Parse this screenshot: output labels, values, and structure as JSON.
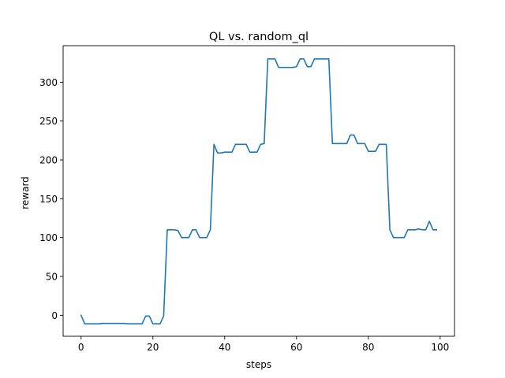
{
  "chart_data": {
    "type": "line",
    "title": "QL vs. random_ql",
    "xlabel": "steps",
    "ylabel": "reward",
    "xlim": [
      -5,
      104
    ],
    "ylim": [
      -27,
      347
    ],
    "xticks": [
      0,
      20,
      40,
      60,
      80,
      100
    ],
    "yticks": [
      0,
      50,
      100,
      150,
      200,
      250,
      300
    ],
    "grid": false,
    "line_color": "#1f77b4",
    "series": [
      {
        "x": [
          0,
          1,
          2,
          3,
          4,
          5,
          6,
          7,
          8,
          9,
          10,
          11,
          12,
          13,
          14,
          15,
          16,
          17,
          18,
          19,
          20,
          21,
          22,
          23,
          24,
          25,
          26,
          27,
          28,
          29,
          30,
          31,
          32,
          33,
          34,
          35,
          36,
          37,
          38,
          39,
          40,
          41,
          42,
          43,
          44,
          45,
          46,
          47,
          48,
          49,
          50,
          51,
          52,
          53,
          54,
          55,
          56,
          57,
          58,
          59,
          60,
          61,
          62,
          63,
          64,
          65,
          66,
          67,
          68,
          69,
          70,
          71,
          72,
          73,
          74,
          75,
          76,
          77,
          78,
          79,
          80,
          81,
          82,
          83,
          84,
          85,
          86,
          87,
          88,
          89,
          90,
          91,
          92,
          93,
          94,
          95,
          96,
          97,
          98,
          99
        ],
        "values": [
          0,
          -11,
          -11,
          -11,
          -11,
          -11,
          -10.5,
          -10.5,
          -10.5,
          -10.5,
          -10.5,
          -10.5,
          -10.5,
          -11,
          -11,
          -11,
          -11,
          -11,
          -1,
          -1,
          -11,
          -11,
          -11,
          -1,
          110,
          110,
          110,
          109,
          100,
          100,
          100,
          110,
          110,
          100,
          100,
          100,
          110,
          220,
          209,
          209,
          210,
          210,
          210,
          220,
          220,
          220,
          220,
          210,
          210,
          210,
          220,
          221,
          330,
          330,
          330,
          319,
          319,
          319,
          319,
          319,
          320,
          330,
          330,
          320,
          320,
          330,
          330,
          330,
          330,
          330,
          221,
          221,
          221,
          221,
          221,
          232,
          232,
          221,
          221,
          221,
          211,
          211,
          211,
          220,
          220,
          220,
          110,
          100,
          100,
          100,
          100,
          110,
          110,
          110,
          111,
          110,
          110,
          121,
          110,
          110
        ]
      }
    ]
  }
}
